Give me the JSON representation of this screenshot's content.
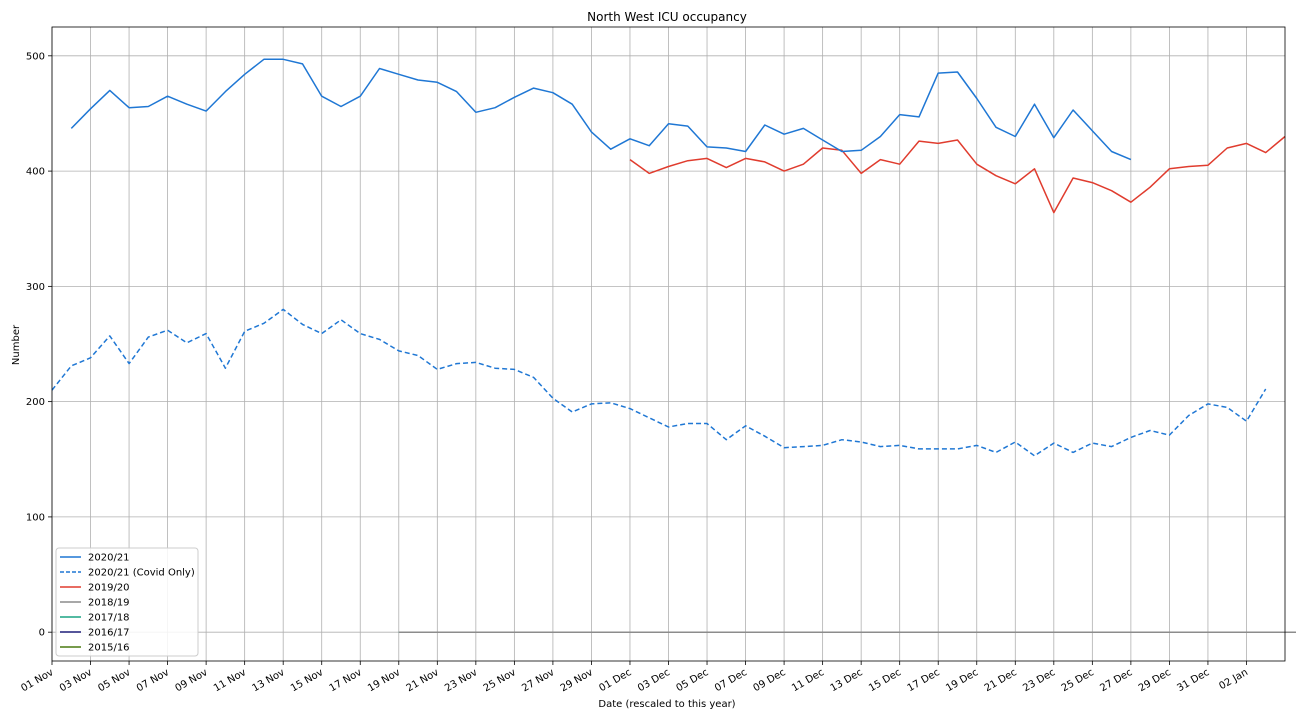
{
  "chart_data": {
    "type": "line",
    "title": "North West ICU occupancy",
    "xlabel": "Date (rescaled to this year)",
    "ylabel": "Number",
    "x_range": [
      "2020-11-01",
      "2021-01-04"
    ],
    "ylim": [
      -25,
      525
    ],
    "y_ticks": [
      0,
      100,
      200,
      300,
      400,
      500
    ],
    "x_tick_labels": [
      "01 Nov",
      "03 Nov",
      "05 Nov",
      "07 Nov",
      "09 Nov",
      "11 Nov",
      "13 Nov",
      "15 Nov",
      "17 Nov",
      "19 Nov",
      "21 Nov",
      "23 Nov",
      "25 Nov",
      "27 Nov",
      "29 Nov",
      "01 Dec",
      "03 Dec",
      "05 Dec",
      "07 Dec",
      "09 Dec",
      "11 Dec",
      "13 Dec",
      "15 Dec",
      "17 Dec",
      "19 Dec",
      "21 Dec",
      "23 Dec",
      "25 Dec",
      "27 Dec",
      "29 Dec",
      "31 Dec",
      "02 Jan"
    ],
    "x_tick_dates": [
      "2020-11-01",
      "2020-11-03",
      "2020-11-05",
      "2020-11-07",
      "2020-11-09",
      "2020-11-11",
      "2020-11-13",
      "2020-11-15",
      "2020-11-17",
      "2020-11-19",
      "2020-11-21",
      "2020-11-23",
      "2020-11-25",
      "2020-11-27",
      "2020-11-29",
      "2020-12-01",
      "2020-12-03",
      "2020-12-05",
      "2020-12-07",
      "2020-12-09",
      "2020-12-11",
      "2020-12-13",
      "2020-12-15",
      "2020-12-17",
      "2020-12-19",
      "2020-12-21",
      "2020-12-23",
      "2020-12-25",
      "2020-12-27",
      "2020-12-29",
      "2020-12-31",
      "2021-01-02"
    ],
    "grid": true,
    "legend_position": "lower-left",
    "series": [
      {
        "name": "2020/21",
        "color": "#1f77d4",
        "dash": "solid",
        "x_start": "2020-11-02",
        "values": [
          437,
          454,
          470,
          455,
          456,
          465,
          458,
          452,
          469,
          484,
          497,
          497,
          493,
          465,
          456,
          465,
          489,
          484,
          479,
          477,
          469,
          451,
          455,
          464,
          472,
          468,
          458,
          434,
          419,
          428,
          422,
          441,
          439,
          421,
          420,
          417,
          440,
          432,
          437,
          427,
          417,
          418,
          430,
          449,
          447,
          485,
          486,
          463,
          438,
          430,
          458,
          429,
          453,
          435,
          417,
          410
        ]
      },
      {
        "name": "2020/21 (Covid Only)",
        "color": "#1f77d4",
        "dash": "dashed",
        "x_start": "2020-11-01",
        "values": [
          210,
          231,
          238,
          257,
          233,
          256,
          262,
          251,
          259,
          229,
          261,
          268,
          280,
          267,
          259,
          271,
          259,
          254,
          244,
          240,
          228,
          233,
          234,
          229,
          228,
          221,
          203,
          191,
          198,
          199,
          194,
          186,
          178,
          181,
          181,
          167,
          179,
          170,
          160,
          161,
          162,
          167,
          165,
          161,
          162,
          159,
          159,
          159,
          162,
          156,
          165,
          153,
          164,
          156,
          164,
          161,
          169,
          175,
          171,
          188,
          198,
          195,
          183,
          211
        ]
      },
      {
        "name": "2019/20",
        "color": "#e03c2e",
        "dash": "solid",
        "x_start": "2020-12-01",
        "values": [
          410,
          398,
          404,
          409,
          411,
          403,
          411,
          408,
          400,
          406,
          420,
          418,
          398,
          410,
          406,
          426,
          424,
          427,
          406,
          396,
          389,
          402,
          364,
          394,
          390,
          383,
          373,
          386,
          402,
          404,
          405,
          420,
          424,
          416,
          430
        ]
      },
      {
        "name": "2018/19",
        "color": "#8c8c8c",
        "dash": "solid",
        "x_start": "2020-11-19",
        "values": [
          0,
          0,
          0,
          0,
          0,
          0,
          0,
          0,
          0,
          0,
          0,
          0,
          0,
          0,
          0,
          0,
          0,
          0,
          0,
          0,
          0,
          0,
          0,
          0,
          0,
          0,
          0,
          0,
          0,
          0,
          0,
          0,
          0,
          0,
          0,
          0,
          0,
          0,
          0,
          0,
          0,
          0,
          0,
          0,
          0,
          0,
          0,
          0
        ]
      },
      {
        "name": "2017/18",
        "color": "#1aa384",
        "dash": "solid",
        "x_start": "2020-11-19",
        "values": [
          0,
          0,
          0,
          0,
          0,
          0,
          0,
          0,
          0,
          0
        ]
      },
      {
        "name": "2016/17",
        "color": "#1f1f7a",
        "dash": "solid",
        "x_start": "2020-11-28",
        "values": [
          0,
          0,
          0,
          0,
          0,
          0,
          0,
          0,
          0,
          0,
          0,
          0,
          0,
          0,
          0,
          0,
          0,
          0,
          0,
          0,
          0,
          0,
          0,
          0,
          0,
          0,
          0,
          0,
          0,
          0,
          0,
          0,
          0,
          0,
          0,
          0,
          0,
          0,
          0
        ]
      },
      {
        "name": "2015/16",
        "color": "#4a7a10",
        "dash": "solid",
        "x_start": "2020-11-28",
        "values": [
          0,
          0,
          0,
          0,
          0,
          0,
          0,
          0,
          0,
          0,
          0,
          0,
          0,
          0,
          0,
          0,
          0,
          0,
          0,
          0,
          0,
          0,
          0,
          0,
          0,
          0,
          0,
          0,
          0,
          0,
          0,
          0,
          0,
          0,
          0,
          0,
          0,
          0,
          0
        ]
      }
    ]
  }
}
